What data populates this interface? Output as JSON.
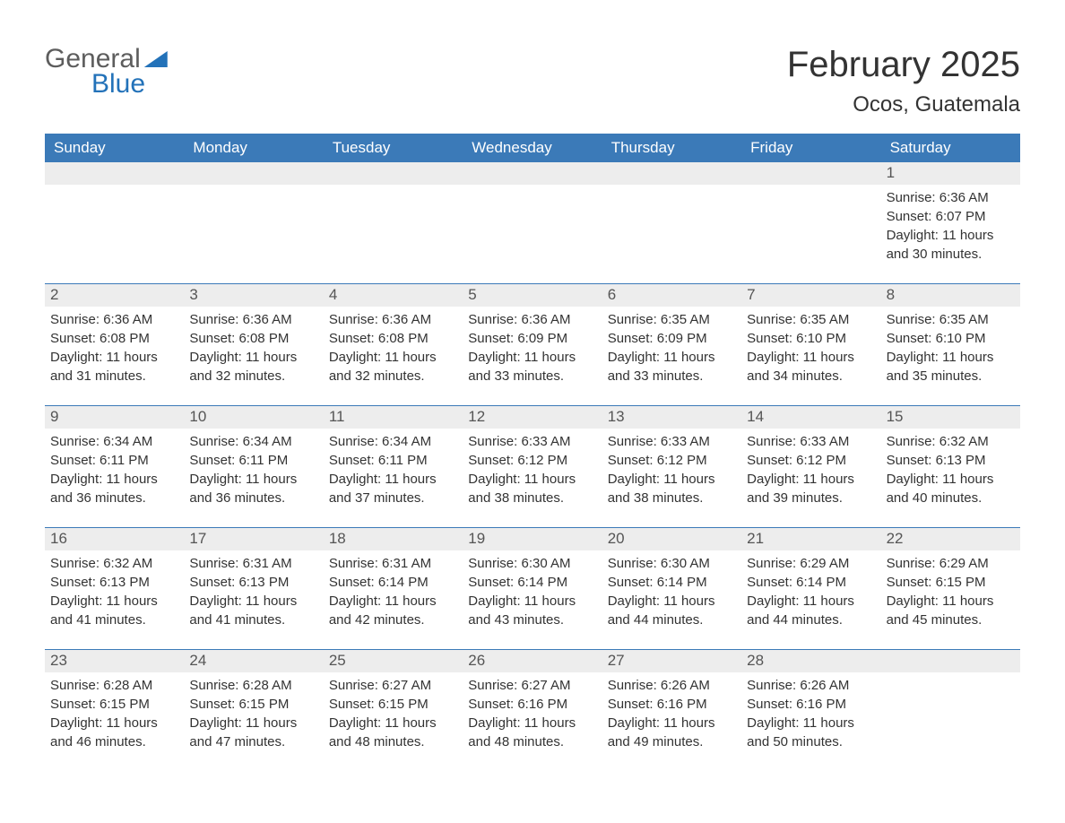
{
  "logo": {
    "text1": "General",
    "text2": "Blue",
    "brand_color": "#2372b9",
    "neutral_color": "#5d5d5d"
  },
  "title": "February 2025",
  "location": "Ocos, Guatemala",
  "colors": {
    "header_bg": "#3b7ab8",
    "header_text": "#ffffff",
    "daynum_bg": "#ededed",
    "daynum_text": "#555555",
    "body_text": "#333333",
    "page_bg": "#ffffff",
    "rule": "#3b7ab8"
  },
  "typography": {
    "title_fontsize": 40,
    "location_fontsize": 24,
    "dow_fontsize": 17,
    "daynum_fontsize": 17,
    "body_fontsize": 15,
    "font_family": "Arial"
  },
  "days_of_week": [
    "Sunday",
    "Monday",
    "Tuesday",
    "Wednesday",
    "Thursday",
    "Friday",
    "Saturday"
  ],
  "start_weekday_index": 6,
  "days_in_month": 28,
  "days": [
    {
      "n": 1,
      "sunrise": "6:36 AM",
      "sunset": "6:07 PM",
      "daylight": "11 hours and 30 minutes."
    },
    {
      "n": 2,
      "sunrise": "6:36 AM",
      "sunset": "6:08 PM",
      "daylight": "11 hours and 31 minutes."
    },
    {
      "n": 3,
      "sunrise": "6:36 AM",
      "sunset": "6:08 PM",
      "daylight": "11 hours and 32 minutes."
    },
    {
      "n": 4,
      "sunrise": "6:36 AM",
      "sunset": "6:08 PM",
      "daylight": "11 hours and 32 minutes."
    },
    {
      "n": 5,
      "sunrise": "6:36 AM",
      "sunset": "6:09 PM",
      "daylight": "11 hours and 33 minutes."
    },
    {
      "n": 6,
      "sunrise": "6:35 AM",
      "sunset": "6:09 PM",
      "daylight": "11 hours and 33 minutes."
    },
    {
      "n": 7,
      "sunrise": "6:35 AM",
      "sunset": "6:10 PM",
      "daylight": "11 hours and 34 minutes."
    },
    {
      "n": 8,
      "sunrise": "6:35 AM",
      "sunset": "6:10 PM",
      "daylight": "11 hours and 35 minutes."
    },
    {
      "n": 9,
      "sunrise": "6:34 AM",
      "sunset": "6:11 PM",
      "daylight": "11 hours and 36 minutes."
    },
    {
      "n": 10,
      "sunrise": "6:34 AM",
      "sunset": "6:11 PM",
      "daylight": "11 hours and 36 minutes."
    },
    {
      "n": 11,
      "sunrise": "6:34 AM",
      "sunset": "6:11 PM",
      "daylight": "11 hours and 37 minutes."
    },
    {
      "n": 12,
      "sunrise": "6:33 AM",
      "sunset": "6:12 PM",
      "daylight": "11 hours and 38 minutes."
    },
    {
      "n": 13,
      "sunrise": "6:33 AM",
      "sunset": "6:12 PM",
      "daylight": "11 hours and 38 minutes."
    },
    {
      "n": 14,
      "sunrise": "6:33 AM",
      "sunset": "6:12 PM",
      "daylight": "11 hours and 39 minutes."
    },
    {
      "n": 15,
      "sunrise": "6:32 AM",
      "sunset": "6:13 PM",
      "daylight": "11 hours and 40 minutes."
    },
    {
      "n": 16,
      "sunrise": "6:32 AM",
      "sunset": "6:13 PM",
      "daylight": "11 hours and 41 minutes."
    },
    {
      "n": 17,
      "sunrise": "6:31 AM",
      "sunset": "6:13 PM",
      "daylight": "11 hours and 41 minutes."
    },
    {
      "n": 18,
      "sunrise": "6:31 AM",
      "sunset": "6:14 PM",
      "daylight": "11 hours and 42 minutes."
    },
    {
      "n": 19,
      "sunrise": "6:30 AM",
      "sunset": "6:14 PM",
      "daylight": "11 hours and 43 minutes."
    },
    {
      "n": 20,
      "sunrise": "6:30 AM",
      "sunset": "6:14 PM",
      "daylight": "11 hours and 44 minutes."
    },
    {
      "n": 21,
      "sunrise": "6:29 AM",
      "sunset": "6:14 PM",
      "daylight": "11 hours and 44 minutes."
    },
    {
      "n": 22,
      "sunrise": "6:29 AM",
      "sunset": "6:15 PM",
      "daylight": "11 hours and 45 minutes."
    },
    {
      "n": 23,
      "sunrise": "6:28 AM",
      "sunset": "6:15 PM",
      "daylight": "11 hours and 46 minutes."
    },
    {
      "n": 24,
      "sunrise": "6:28 AM",
      "sunset": "6:15 PM",
      "daylight": "11 hours and 47 minutes."
    },
    {
      "n": 25,
      "sunrise": "6:27 AM",
      "sunset": "6:15 PM",
      "daylight": "11 hours and 48 minutes."
    },
    {
      "n": 26,
      "sunrise": "6:27 AM",
      "sunset": "6:16 PM",
      "daylight": "11 hours and 48 minutes."
    },
    {
      "n": 27,
      "sunrise": "6:26 AM",
      "sunset": "6:16 PM",
      "daylight": "11 hours and 49 minutes."
    },
    {
      "n": 28,
      "sunrise": "6:26 AM",
      "sunset": "6:16 PM",
      "daylight": "11 hours and 50 minutes."
    }
  ],
  "labels": {
    "sunrise": "Sunrise:",
    "sunset": "Sunset:",
    "daylight": "Daylight:"
  }
}
